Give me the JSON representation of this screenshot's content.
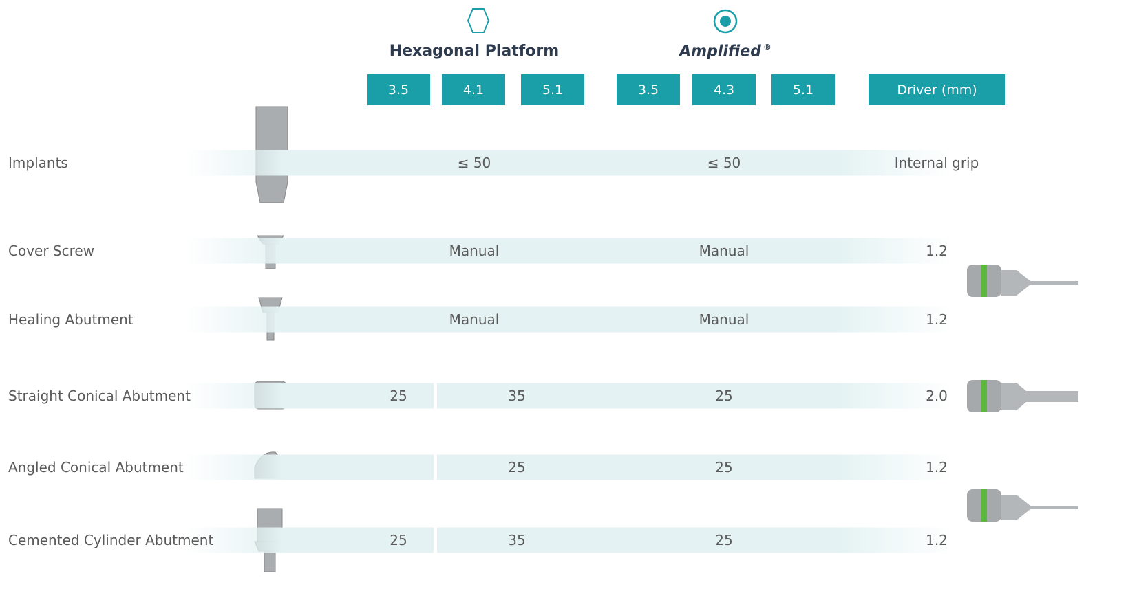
{
  "groups": [
    {
      "title": "Hexagonal Platform"
    },
    {
      "title": "Amplified",
      "mark": "®"
    }
  ],
  "columns": [
    "3.5",
    "4.1",
    "5.1",
    "3.5",
    "4.3",
    "5.1",
    "Driver (mm)"
  ],
  "rows": [
    {
      "label": "Implants",
      "cells": [
        "≤ 50",
        "≤ 50",
        "Internal grip"
      ]
    },
    {
      "label": "Cover Screw",
      "cells": [
        "Manual",
        "Manual",
        "1.2"
      ]
    },
    {
      "label": "Healing Abutment",
      "cells": [
        "Manual",
        "Manual",
        "1.2"
      ]
    },
    {
      "label": "Straight Conical Abutment",
      "cells": [
        "25",
        "35",
        "25",
        "2.0"
      ]
    },
    {
      "label": "Angled Conical Abutment",
      "cells": [
        null,
        "25",
        "25",
        "1.2"
      ]
    },
    {
      "label": "Cemented Cylinder Abutment",
      "cells": [
        "25",
        "35",
        "25",
        "1.2"
      ]
    }
  ]
}
